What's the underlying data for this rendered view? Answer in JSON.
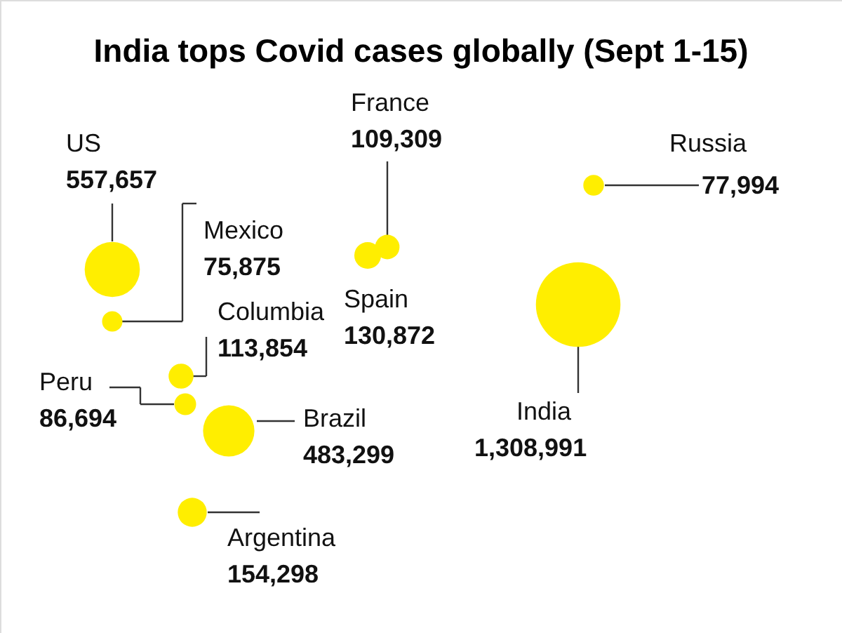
{
  "chart_data": {
    "type": "other",
    "title": "India tops Covid cases globally (Sept 1-15)",
    "categories": [
      "US",
      "Mexico",
      "Columbia",
      "Peru",
      "Brazil",
      "Argentina",
      "France",
      "Spain",
      "Russia",
      "India"
    ],
    "values": [
      557657,
      75875,
      113854,
      86694,
      483299,
      154298,
      109309,
      130872,
      77994,
      1308991
    ],
    "value_labels": [
      "557,657",
      "75,875",
      "113,854",
      "86,694",
      "483,299",
      "154,298",
      "109,309",
      "130,872",
      "77,994",
      "1,308,991"
    ],
    "color": "#ffee00"
  }
}
